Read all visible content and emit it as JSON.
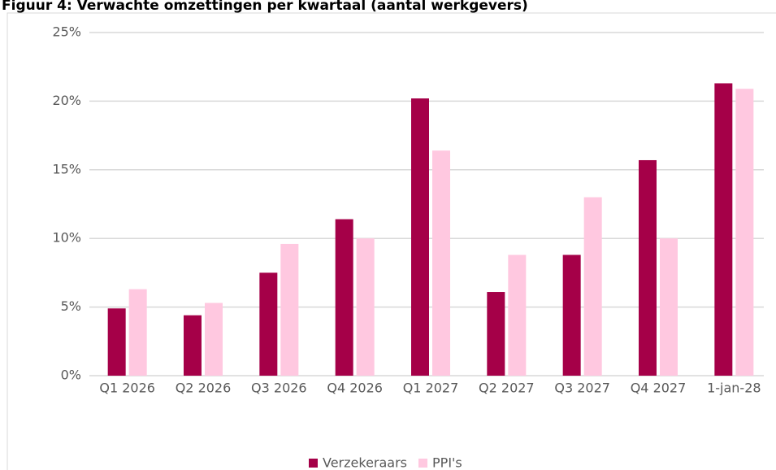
{
  "chart_data": {
    "type": "bar",
    "title": "Figuur 4: Verwachte omzettingen per kwartaal (aantal werkgevers)",
    "categories": [
      "Q1 2026",
      "Q2 2026",
      "Q3 2026",
      "Q4 2026",
      "Q1 2027",
      "Q2 2027",
      "Q3 2027",
      "Q4 2027",
      "1-jan-28"
    ],
    "series": [
      {
        "name": "Verzekeraars",
        "color": "#a50048",
        "values": [
          4.9,
          4.4,
          7.5,
          11.4,
          20.2,
          6.1,
          8.8,
          15.7,
          21.3
        ]
      },
      {
        "name": "PPI's",
        "color": "#ffc8e0",
        "values": [
          6.3,
          5.3,
          9.6,
          10.0,
          16.4,
          8.8,
          13.0,
          10.0,
          20.9
        ]
      }
    ],
    "ylim": [
      0,
      25
    ],
    "yticks": [
      {
        "value": 0,
        "label": "0%"
      },
      {
        "value": 5,
        "label": "5%"
      },
      {
        "value": 10,
        "label": "10%"
      },
      {
        "value": 15,
        "label": "15%"
      },
      {
        "value": 20,
        "label": "20%"
      },
      {
        "value": 25,
        "label": "25%"
      }
    ],
    "grid": true,
    "legend": "bottom"
  }
}
